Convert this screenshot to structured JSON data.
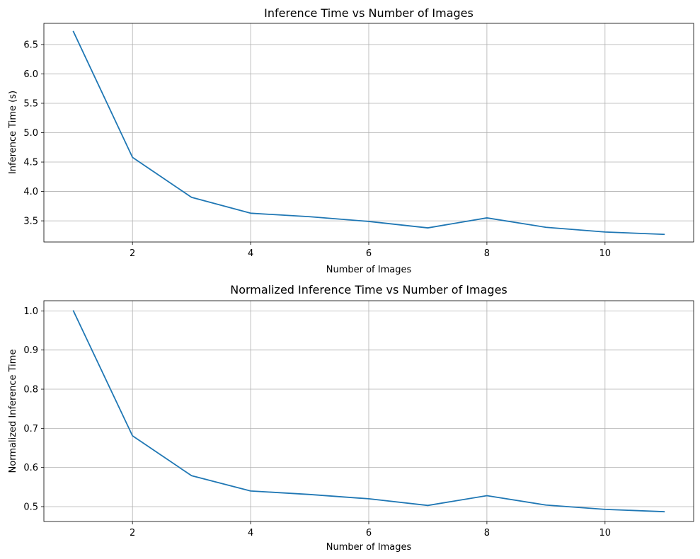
{
  "chart_data": [
    {
      "type": "line",
      "title": "Inference Time vs Number of Images",
      "xlabel": "Number of Images",
      "ylabel": "Inference Time (s)",
      "xlim": [
        0.5,
        11.5
      ],
      "ylim": [
        3.14,
        6.86
      ],
      "xticks": [
        2,
        4,
        6,
        8,
        10
      ],
      "xtick_labels": [
        "2",
        "4",
        "6",
        "8",
        "10"
      ],
      "yticks": [
        3.5,
        4.0,
        4.5,
        5.0,
        5.5,
        6.0,
        6.5
      ],
      "ytick_labels": [
        "3.5",
        "4.0",
        "4.5",
        "5.0",
        "5.5",
        "6.0",
        "6.5"
      ],
      "grid": true,
      "x": [
        1,
        2,
        3,
        4,
        5,
        6,
        7,
        8,
        9,
        10,
        11
      ],
      "series": [
        {
          "values": [
            6.72,
            4.58,
            3.9,
            3.63,
            3.57,
            3.49,
            3.38,
            3.55,
            3.39,
            3.31,
            3.27
          ],
          "color": "#1f77b4"
        }
      ]
    },
    {
      "type": "line",
      "title": "Normalized Inference Time vs Number of Images",
      "xlabel": "Number of Images",
      "ylabel": "Normalized Inference Time",
      "xlim": [
        0.5,
        11.5
      ],
      "ylim": [
        0.462,
        1.026
      ],
      "xticks": [
        2,
        4,
        6,
        8,
        10
      ],
      "xtick_labels": [
        "2",
        "4",
        "6",
        "8",
        "10"
      ],
      "yticks": [
        0.5,
        0.6,
        0.7,
        0.8,
        0.9,
        1.0
      ],
      "ytick_labels": [
        "0.5",
        "0.6",
        "0.7",
        "0.8",
        "0.9",
        "1.0"
      ],
      "grid": true,
      "x": [
        1,
        2,
        3,
        4,
        5,
        6,
        7,
        8,
        9,
        10,
        11
      ],
      "series": [
        {
          "values": [
            1.0,
            0.681,
            0.579,
            0.54,
            0.531,
            0.52,
            0.503,
            0.528,
            0.504,
            0.493,
            0.487
          ],
          "color": "#1f77b4"
        }
      ]
    }
  ]
}
